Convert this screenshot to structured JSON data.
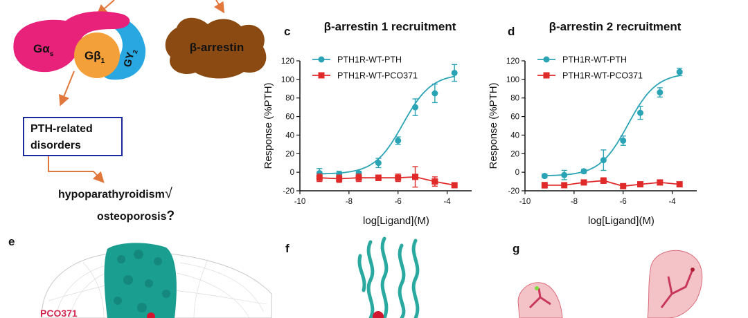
{
  "schematic": {
    "g_alpha": "Gα",
    "g_alpha_sub": "s",
    "g_beta": "Gβ",
    "g_beta_sub": "1",
    "g_gamma": "GY",
    "g_gamma_sub": "2",
    "arrestin": "β-arrestin",
    "box_text_line1": "PTH-related",
    "box_text_line2": "disorders",
    "outcome1": "hypoparathyroidism",
    "outcome1_mark": "√",
    "outcome2": "osteoporosis",
    "outcome2_mark": "?",
    "colors": {
      "g_alpha": "#e8217a",
      "g_beta": "#f3a03b",
      "g_gamma": "#29a7e1",
      "arrestin": "#8b4a12",
      "arrow": "#e2773c",
      "box": "#1a2a9e"
    }
  },
  "panels": {
    "c_letter": "c",
    "d_letter": "d",
    "e_letter": "e",
    "f_letter": "f",
    "g_letter": "g",
    "e_label": "PCO371"
  },
  "chart_data": [
    {
      "type": "line",
      "title": "β-arrestin 1 recruitment",
      "xlabel": "log[Ligand](M)",
      "ylabel": "Response (%PTH)",
      "xlim": [
        -10,
        -3
      ],
      "ylim": [
        -20,
        120
      ],
      "xticks": [
        -10,
        -8,
        -6,
        -4
      ],
      "yticks": [
        -20,
        0,
        20,
        40,
        60,
        80,
        100,
        120
      ],
      "legend_position": "top-left",
      "series": [
        {
          "name": "PTH1R-WT-PTH",
          "color": "#2aa3b5",
          "marker": "circle",
          "x": [
            -9.2,
            -8.4,
            -7.6,
            -6.8,
            -6.0,
            -5.3,
            -4.5,
            -3.7
          ],
          "y": [
            -1,
            -2,
            -1,
            10,
            34,
            70,
            85,
            107
          ],
          "err": [
            5,
            3,
            2,
            5,
            4,
            9,
            10,
            9
          ],
          "fit": "sigmoid"
        },
        {
          "name": "PTH1R-WT-PCO371",
          "color": "#e02a2a",
          "marker": "square",
          "x": [
            -9.2,
            -8.4,
            -7.6,
            -6.8,
            -6.0,
            -5.3,
            -4.5,
            -3.7
          ],
          "y": [
            -6,
            -7,
            -6,
            -6,
            -6,
            -5,
            -10,
            -14
          ],
          "err": [
            4,
            4,
            4,
            3,
            4,
            11,
            5,
            2
          ],
          "fit": "connect"
        }
      ]
    },
    {
      "type": "line",
      "title": "β-arrestin 2 recruitment",
      "xlabel": "log[Ligand](M)",
      "ylabel": "Response (%PTH)",
      "xlim": [
        -10,
        -3
      ],
      "ylim": [
        -20,
        120
      ],
      "xticks": [
        -10,
        -8,
        -6,
        -4
      ],
      "yticks": [
        -20,
        0,
        20,
        40,
        60,
        80,
        100,
        120
      ],
      "legend_position": "top-left",
      "series": [
        {
          "name": "PTH1R-WT-PTH",
          "color": "#2aa3b5",
          "marker": "circle",
          "x": [
            -9.2,
            -8.4,
            -7.6,
            -6.8,
            -6.0,
            -5.3,
            -4.5,
            -3.7
          ],
          "y": [
            -4,
            -3,
            1,
            13,
            34,
            64,
            86,
            108
          ],
          "err": [
            2,
            5,
            2,
            11,
            5,
            7,
            5,
            4
          ],
          "fit": "sigmoid"
        },
        {
          "name": "PTH1R-WT-PCO371",
          "color": "#e02a2a",
          "marker": "square",
          "x": [
            -9.2,
            -8.4,
            -7.6,
            -6.8,
            -6.0,
            -5.3,
            -4.5,
            -3.7
          ],
          "y": [
            -14,
            -14,
            -11,
            -9,
            -15,
            -13,
            -11,
            -13
          ],
          "err": [
            3,
            2,
            2,
            3,
            2,
            2,
            2,
            2
          ],
          "fit": "connect"
        }
      ]
    }
  ]
}
